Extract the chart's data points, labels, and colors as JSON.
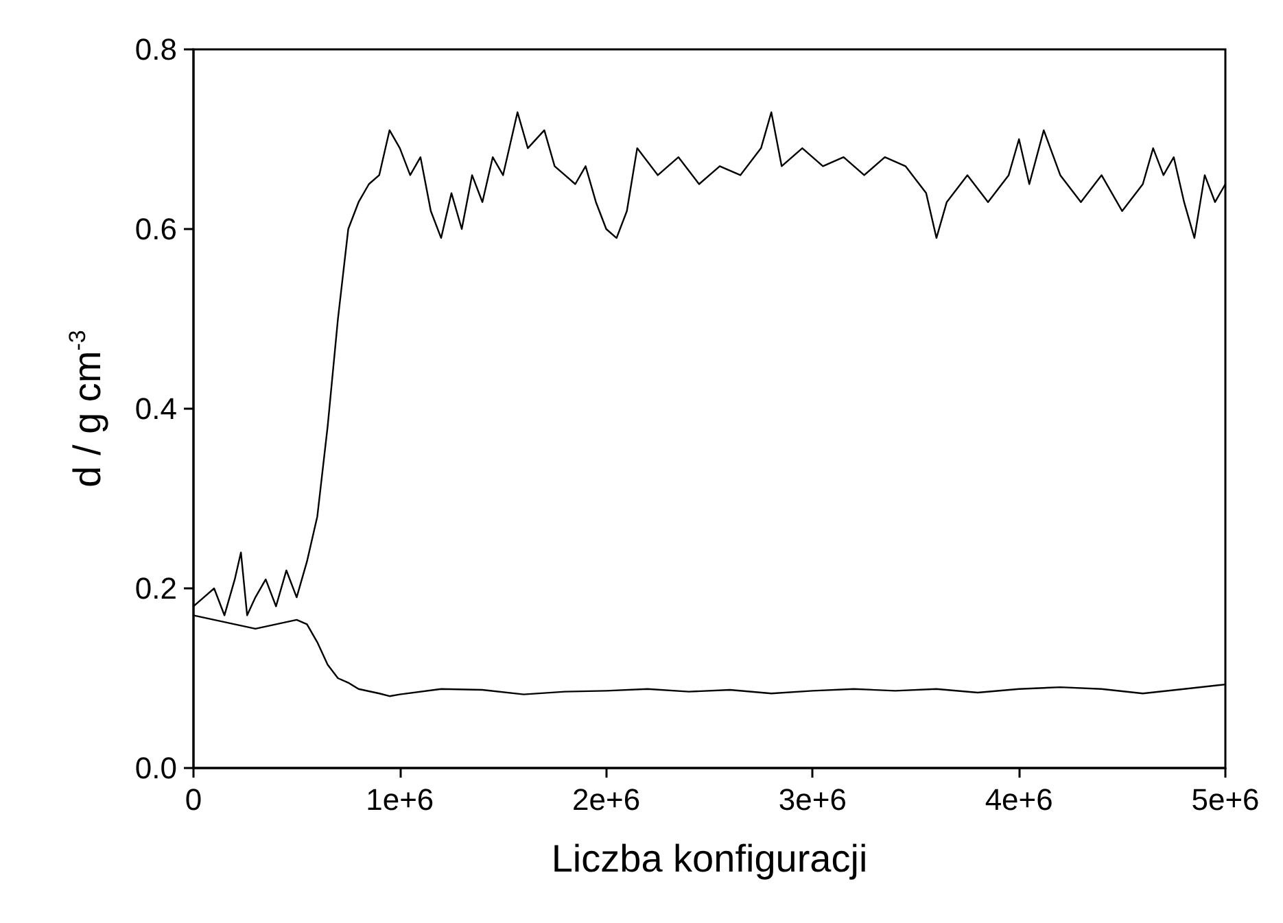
{
  "chart_data": {
    "type": "line",
    "xlabel": "Liczba konfiguracji",
    "ylabel": "d / g cm$^{-3}$",
    "xlim": [
      0,
      5000000
    ],
    "xticks": [
      0,
      {
        "value": 1000000,
        "label": "1e+6"
      },
      {
        "value": 2000000,
        "label": "2e+6"
      },
      {
        "value": 3000000,
        "label": "3e+6"
      },
      {
        "value": 4000000,
        "label": "4e+6"
      },
      {
        "value": 5000000,
        "label": "5e+6"
      }
    ],
    "ylim": [
      0,
      0.8
    ],
    "yticks": [
      {
        "value": 0,
        "label": "0.0"
      },
      0.2,
      0.4,
      0.6,
      0.8
    ],
    "marker": "none",
    "line_style": "solid",
    "series": [
      {
        "color": "#000000",
        "x": [
          0,
          50000,
          100000,
          150000,
          200000,
          230000,
          260000,
          300000,
          350000,
          400000,
          450000,
          500000,
          550000,
          600000,
          650000,
          700000,
          750000,
          800000,
          850000,
          900000,
          950000,
          1000000,
          1050000,
          1100000,
          1150000,
          1200000,
          1250000,
          1300000,
          1350000,
          1400000,
          1450000,
          1500000,
          1570000,
          1620000,
          1700000,
          1750000,
          1800000,
          1850000,
          1900000,
          1950000,
          2000000,
          2050000,
          2100000,
          2150000,
          2250000,
          2350000,
          2450000,
          2550000,
          2650000,
          2750000,
          2800000,
          2850000,
          2950000,
          3050000,
          3150000,
          3250000,
          3350000,
          3450000,
          3550000,
          3600000,
          3650000,
          3750000,
          3850000,
          3950000,
          4000000,
          4050000,
          4120000,
          4200000,
          4300000,
          4400000,
          4500000,
          4600000,
          4650000,
          4700000,
          4750000,
          4800000,
          4850000,
          4900000,
          4950000,
          5000000
        ],
        "values": [
          0.18,
          0.19,
          0.2,
          0.17,
          0.21,
          0.24,
          0.17,
          0.19,
          0.21,
          0.18,
          0.22,
          0.19,
          0.23,
          0.28,
          0.38,
          0.5,
          0.6,
          0.63,
          0.65,
          0.66,
          0.71,
          0.69,
          0.66,
          0.68,
          0.62,
          0.59,
          0.64,
          0.6,
          0.66,
          0.63,
          0.68,
          0.66,
          0.73,
          0.69,
          0.71,
          0.67,
          0.66,
          0.65,
          0.67,
          0.63,
          0.6,
          0.59,
          0.62,
          0.69,
          0.66,
          0.68,
          0.65,
          0.67,
          0.66,
          0.69,
          0.73,
          0.67,
          0.69,
          0.67,
          0.68,
          0.66,
          0.68,
          0.67,
          0.64,
          0.59,
          0.63,
          0.66,
          0.63,
          0.66,
          0.7,
          0.65,
          0.71,
          0.66,
          0.63,
          0.66,
          0.62,
          0.65,
          0.69,
          0.66,
          0.68,
          0.63,
          0.59,
          0.66,
          0.63,
          0.65
        ]
      },
      {
        "color": "#000000",
        "x": [
          0,
          100000,
          200000,
          300000,
          400000,
          500000,
          550000,
          600000,
          650000,
          700000,
          750000,
          800000,
          900000,
          950000,
          1000000,
          1200000,
          1400000,
          1600000,
          1800000,
          2000000,
          2200000,
          2400000,
          2600000,
          2800000,
          3000000,
          3200000,
          3400000,
          3600000,
          3800000,
          4000000,
          4200000,
          4400000,
          4600000,
          4800000,
          5000000
        ],
        "values": [
          0.17,
          0.165,
          0.16,
          0.155,
          0.16,
          0.165,
          0.16,
          0.14,
          0.115,
          0.1,
          0.095,
          0.088,
          0.083,
          0.08,
          0.082,
          0.088,
          0.087,
          0.082,
          0.085,
          0.086,
          0.088,
          0.085,
          0.087,
          0.083,
          0.086,
          0.088,
          0.086,
          0.088,
          0.084,
          0.088,
          0.09,
          0.088,
          0.083,
          0.088,
          0.093
        ]
      }
    ]
  }
}
